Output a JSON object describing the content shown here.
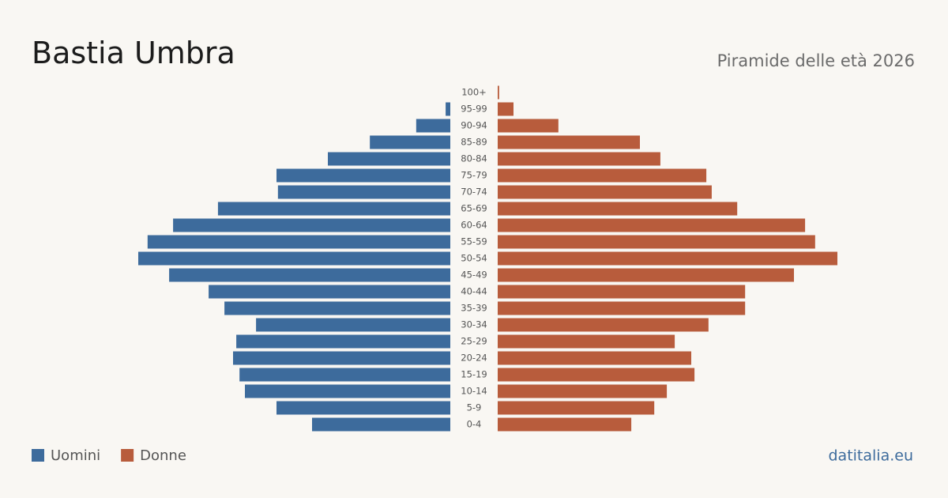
{
  "chart_data": {
    "type": "pyramid",
    "title": "Bastia Umbra",
    "subtitle": "Piramide delle età 2026",
    "categories": [
      "100+",
      "95-99",
      "90-94",
      "85-89",
      "80-84",
      "75-79",
      "70-74",
      "65-69",
      "60-64",
      "55-59",
      "50-54",
      "45-49",
      "40-44",
      "35-39",
      "30-34",
      "25-29",
      "20-24",
      "15-19",
      "10-14",
      "5-9",
      "0-4"
    ],
    "series": [
      {
        "name": "Uomini",
        "color": "#3d6b9c",
        "values": [
          0,
          13,
          95,
          224,
          341,
          484,
          480,
          647,
          772,
          843,
          869,
          783,
          673,
          629,
          541,
          596,
          605,
          587,
          572,
          484,
          385
        ]
      },
      {
        "name": "Donne",
        "color": "#b85c3c",
        "values": [
          4,
          44,
          169,
          396,
          453,
          581,
          596,
          667,
          856,
          884,
          946,
          825,
          689,
          689,
          587,
          493,
          539,
          548,
          471,
          436,
          372
        ]
      }
    ],
    "source": "datitalia.eu"
  }
}
